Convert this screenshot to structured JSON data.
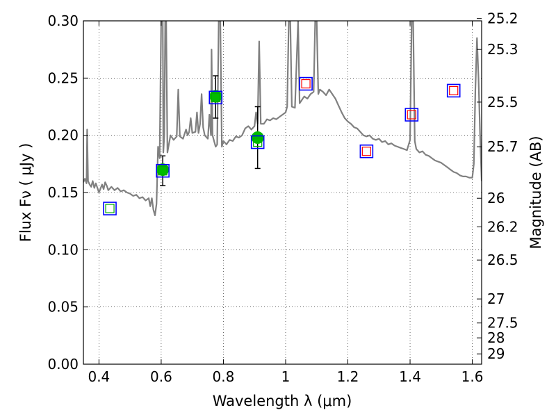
{
  "chart_data": {
    "type": "scatter",
    "title": "",
    "xlabel": "Wavelength  λ (μm)",
    "ylabel": "Flux  Fν  ( μJy )",
    "y2label": "Magnitude (AB)",
    "xlim": [
      0.35,
      1.63
    ],
    "ylim": [
      0.0,
      0.3
    ],
    "grid": true,
    "x_ticks": [
      0.4,
      0.6,
      0.8,
      1.0,
      1.2,
      1.4,
      1.6
    ],
    "x_tick_labels": [
      "0.4",
      "0.6",
      "0.8",
      "1",
      "1.2",
      "1.4",
      "1.6"
    ],
    "y_ticks": [
      0.0,
      0.05,
      0.1,
      0.15,
      0.2,
      0.25,
      0.3
    ],
    "y_tick_labels": [
      "0.00",
      "0.05",
      "0.10",
      "0.15",
      "0.20",
      "0.25",
      "0.30"
    ],
    "y2_ticks": [
      {
        "label": "25.2",
        "flux": 0.302
      },
      {
        "label": "25.3",
        "flux": 0.275
      },
      {
        "label": "25.5",
        "flux": 0.229
      },
      {
        "label": "25.7",
        "flux": 0.19
      },
      {
        "label": "26",
        "flux": 0.145
      },
      {
        "label": "26.2",
        "flux": 0.12
      },
      {
        "label": "26.5",
        "flux": 0.091
      },
      {
        "label": "27",
        "flux": 0.057
      },
      {
        "label": "27.5",
        "flux": 0.036
      },
      {
        "label": "28",
        "flux": 0.023
      },
      {
        "label": "29",
        "flux": 0.009
      }
    ],
    "colors": {
      "model": "#808080",
      "detection": "#00bb00",
      "blue_box": "#0000ff",
      "green_box": "#00aa00",
      "red_box": "#ff0000"
    },
    "series": [
      {
        "marker": "filled-circle",
        "color": "#00bb00",
        "points": [
          {
            "x": 0.605,
            "y": 0.17,
            "yerr_low": 0.156,
            "yerr_high": 0.182
          },
          {
            "x": 0.775,
            "y": 0.234,
            "yerr_low": 0.215,
            "yerr_high": 0.252
          },
          {
            "x": 0.91,
            "y": 0.198,
            "yerr_low": 0.171,
            "yerr_high": 0.225
          }
        ]
      },
      {
        "marker": "open-square",
        "color": "#0000ff",
        "points": [
          {
            "x": 0.435,
            "y": 0.136
          },
          {
            "x": 0.605,
            "y": 0.169
          },
          {
            "x": 0.775,
            "y": 0.233
          },
          {
            "x": 0.91,
            "y": 0.194
          },
          {
            "x": 1.065,
            "y": 0.245
          },
          {
            "x": 1.26,
            "y": 0.186
          },
          {
            "x": 1.405,
            "y": 0.218
          },
          {
            "x": 1.54,
            "y": 0.239
          }
        ]
      },
      {
        "marker": "open-square-small",
        "color": "#00aa00",
        "points": [
          {
            "x": 0.435,
            "y": 0.136
          },
          {
            "x": 0.605,
            "y": 0.169
          },
          {
            "x": 0.775,
            "y": 0.233
          },
          {
            "x": 0.91,
            "y": 0.194
          }
        ]
      },
      {
        "marker": "open-square-small",
        "color": "#ff0000",
        "points": [
          {
            "x": 1.065,
            "y": 0.245
          },
          {
            "x": 1.26,
            "y": 0.186
          },
          {
            "x": 1.405,
            "y": 0.218
          },
          {
            "x": 1.54,
            "y": 0.239
          }
        ]
      },
      {
        "marker": "line",
        "color": "#808080",
        "points": [
          [
            0.35,
            0.159
          ],
          [
            0.355,
            0.162
          ],
          [
            0.36,
            0.158
          ],
          [
            0.362,
            0.205
          ],
          [
            0.365,
            0.16
          ],
          [
            0.37,
            0.157
          ],
          [
            0.375,
            0.155
          ],
          [
            0.38,
            0.16
          ],
          [
            0.385,
            0.154
          ],
          [
            0.39,
            0.158
          ],
          [
            0.4,
            0.15
          ],
          [
            0.41,
            0.157
          ],
          [
            0.415,
            0.153
          ],
          [
            0.42,
            0.159
          ],
          [
            0.425,
            0.156
          ],
          [
            0.43,
            0.152
          ],
          [
            0.44,
            0.155
          ],
          [
            0.45,
            0.152
          ],
          [
            0.46,
            0.154
          ],
          [
            0.47,
            0.151
          ],
          [
            0.48,
            0.152
          ],
          [
            0.49,
            0.15
          ],
          [
            0.5,
            0.149
          ],
          [
            0.51,
            0.147
          ],
          [
            0.52,
            0.148
          ],
          [
            0.53,
            0.145
          ],
          [
            0.54,
            0.146
          ],
          [
            0.55,
            0.143
          ],
          [
            0.56,
            0.145
          ],
          [
            0.565,
            0.138
          ],
          [
            0.57,
            0.145
          ],
          [
            0.575,
            0.135
          ],
          [
            0.58,
            0.13
          ],
          [
            0.585,
            0.14
          ],
          [
            0.59,
            0.19
          ],
          [
            0.595,
            0.18
          ],
          [
            0.6,
            0.3
          ],
          [
            0.605,
            0.3
          ],
          [
            0.607,
            0.185
          ],
          [
            0.61,
            0.2
          ],
          [
            0.613,
            0.3
          ],
          [
            0.616,
            0.3
          ],
          [
            0.62,
            0.185
          ],
          [
            0.63,
            0.2
          ],
          [
            0.64,
            0.196
          ],
          [
            0.65,
            0.199
          ],
          [
            0.655,
            0.24
          ],
          [
            0.66,
            0.199
          ],
          [
            0.67,
            0.197
          ],
          [
            0.68,
            0.205
          ],
          [
            0.685,
            0.2
          ],
          [
            0.69,
            0.203
          ],
          [
            0.695,
            0.215
          ],
          [
            0.7,
            0.202
          ],
          [
            0.71,
            0.203
          ],
          [
            0.715,
            0.22
          ],
          [
            0.72,
            0.202
          ],
          [
            0.725,
            0.21
          ],
          [
            0.73,
            0.236
          ],
          [
            0.735,
            0.207
          ],
          [
            0.74,
            0.2
          ],
          [
            0.75,
            0.197
          ],
          [
            0.755,
            0.218
          ],
          [
            0.76,
            0.2
          ],
          [
            0.762,
            0.275
          ],
          [
            0.765,
            0.2
          ],
          [
            0.77,
            0.195
          ],
          [
            0.775,
            0.19
          ],
          [
            0.78,
            0.192
          ],
          [
            0.785,
            0.3
          ],
          [
            0.79,
            0.3
          ],
          [
            0.795,
            0.19
          ],
          [
            0.8,
            0.195
          ],
          [
            0.81,
            0.192
          ],
          [
            0.82,
            0.196
          ],
          [
            0.83,
            0.195
          ],
          [
            0.84,
            0.199
          ],
          [
            0.85,
            0.198
          ],
          [
            0.86,
            0.2
          ],
          [
            0.87,
            0.206
          ],
          [
            0.88,
            0.208
          ],
          [
            0.89,
            0.205
          ],
          [
            0.9,
            0.208
          ],
          [
            0.905,
            0.22
          ],
          [
            0.91,
            0.21
          ],
          [
            0.915,
            0.282
          ],
          [
            0.92,
            0.21
          ],
          [
            0.93,
            0.21
          ],
          [
            0.94,
            0.214
          ],
          [
            0.95,
            0.213
          ],
          [
            0.96,
            0.215
          ],
          [
            0.97,
            0.214
          ],
          [
            0.98,
            0.216
          ],
          [
            0.99,
            0.218
          ],
          [
            1.0,
            0.22
          ],
          [
            1.005,
            0.225
          ],
          [
            1.01,
            0.3
          ],
          [
            1.015,
            0.3
          ],
          [
            1.02,
            0.225
          ],
          [
            1.03,
            0.224
          ],
          [
            1.04,
            0.3
          ],
          [
            1.045,
            0.228
          ],
          [
            1.05,
            0.23
          ],
          [
            1.06,
            0.234
          ],
          [
            1.07,
            0.232
          ],
          [
            1.08,
            0.236
          ],
          [
            1.09,
            0.238
          ],
          [
            1.095,
            0.3
          ],
          [
            1.1,
            0.3
          ],
          [
            1.105,
            0.236
          ],
          [
            1.11,
            0.24
          ],
          [
            1.12,
            0.238
          ],
          [
            1.13,
            0.235
          ],
          [
            1.14,
            0.24
          ],
          [
            1.15,
            0.236
          ],
          [
            1.16,
            0.232
          ],
          [
            1.17,
            0.226
          ],
          [
            1.18,
            0.22
          ],
          [
            1.19,
            0.215
          ],
          [
            1.2,
            0.212
          ],
          [
            1.21,
            0.21
          ],
          [
            1.22,
            0.207
          ],
          [
            1.23,
            0.206
          ],
          [
            1.24,
            0.203
          ],
          [
            1.25,
            0.2
          ],
          [
            1.26,
            0.199
          ],
          [
            1.27,
            0.2
          ],
          [
            1.28,
            0.197
          ],
          [
            1.29,
            0.196
          ],
          [
            1.3,
            0.197
          ],
          [
            1.31,
            0.194
          ],
          [
            1.32,
            0.195
          ],
          [
            1.33,
            0.192
          ],
          [
            1.34,
            0.193
          ],
          [
            1.35,
            0.191
          ],
          [
            1.36,
            0.19
          ],
          [
            1.37,
            0.189
          ],
          [
            1.38,
            0.188
          ],
          [
            1.39,
            0.187
          ],
          [
            1.4,
            0.196
          ],
          [
            1.405,
            0.3
          ],
          [
            1.41,
            0.3
          ],
          [
            1.415,
            0.195
          ],
          [
            1.42,
            0.188
          ],
          [
            1.43,
            0.185
          ],
          [
            1.44,
            0.186
          ],
          [
            1.45,
            0.183
          ],
          [
            1.46,
            0.182
          ],
          [
            1.47,
            0.18
          ],
          [
            1.48,
            0.178
          ],
          [
            1.49,
            0.177
          ],
          [
            1.5,
            0.176
          ],
          [
            1.51,
            0.174
          ],
          [
            1.52,
            0.172
          ],
          [
            1.53,
            0.17
          ],
          [
            1.54,
            0.168
          ],
          [
            1.55,
            0.167
          ],
          [
            1.56,
            0.165
          ],
          [
            1.57,
            0.164
          ],
          [
            1.58,
            0.164
          ],
          [
            1.59,
            0.163
          ],
          [
            1.6,
            0.163
          ],
          [
            1.605,
            0.175
          ],
          [
            1.61,
            0.24
          ],
          [
            1.615,
            0.285
          ],
          [
            1.62,
            0.25
          ],
          [
            1.625,
            0.2
          ],
          [
            1.63,
            0.16
          ]
        ]
      }
    ]
  }
}
